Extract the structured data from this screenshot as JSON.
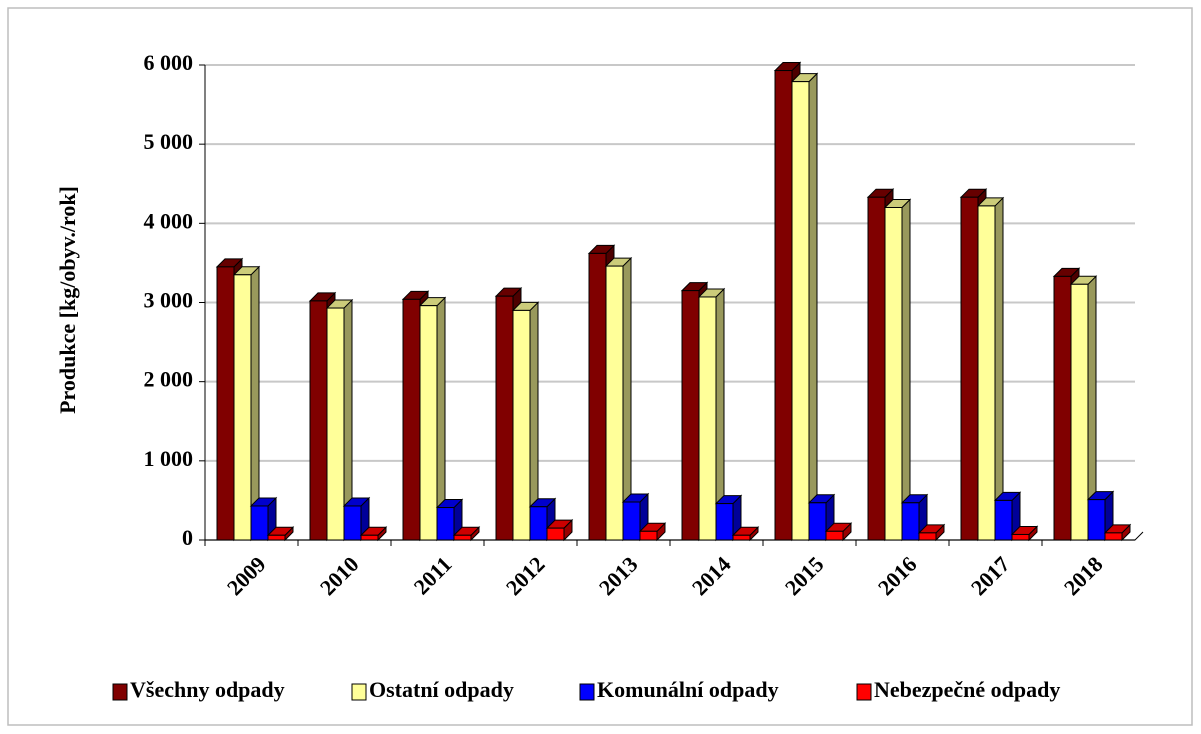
{
  "chart_data": {
    "type": "bar3d",
    "y_label": "Produkce [kg/obyv./rok]",
    "categories": [
      "2009",
      "2010",
      "2011",
      "2012",
      "2013",
      "2014",
      "2015",
      "2016",
      "2017",
      "2018"
    ],
    "series": [
      {
        "name": "Všechny odpady",
        "color": "#800000",
        "values": [
          3450,
          3020,
          3040,
          3080,
          3620,
          3150,
          5930,
          4330,
          4330,
          3330
        ]
      },
      {
        "name": "Ostatní odpady",
        "color": "#ffff99",
        "values": [
          3350,
          2930,
          2960,
          2900,
          3460,
          3070,
          5790,
          4200,
          4220,
          3230
        ]
      },
      {
        "name": "Komunální odpady",
        "color": "#0000ff",
        "values": [
          430,
          430,
          410,
          420,
          480,
          460,
          470,
          470,
          500,
          510
        ]
      },
      {
        "name": "Nebezpečné odpady",
        "color": "#ff0000",
        "values": [
          60,
          60,
          60,
          150,
          110,
          60,
          110,
          90,
          70,
          90
        ]
      }
    ],
    "ylim": [
      0,
      6000
    ],
    "yticks": [
      0,
      {
        "value": 1000,
        "label": "1 000"
      },
      {
        "value": 2000,
        "label": "2 000"
      },
      {
        "value": 3000,
        "label": "3 000"
      },
      {
        "value": 4000,
        "label": "4 000"
      },
      {
        "value": 5000,
        "label": "5 000"
      },
      {
        "value": 6000,
        "label": "6 000"
      }
    ],
    "grid": true,
    "legend": "bottom"
  }
}
